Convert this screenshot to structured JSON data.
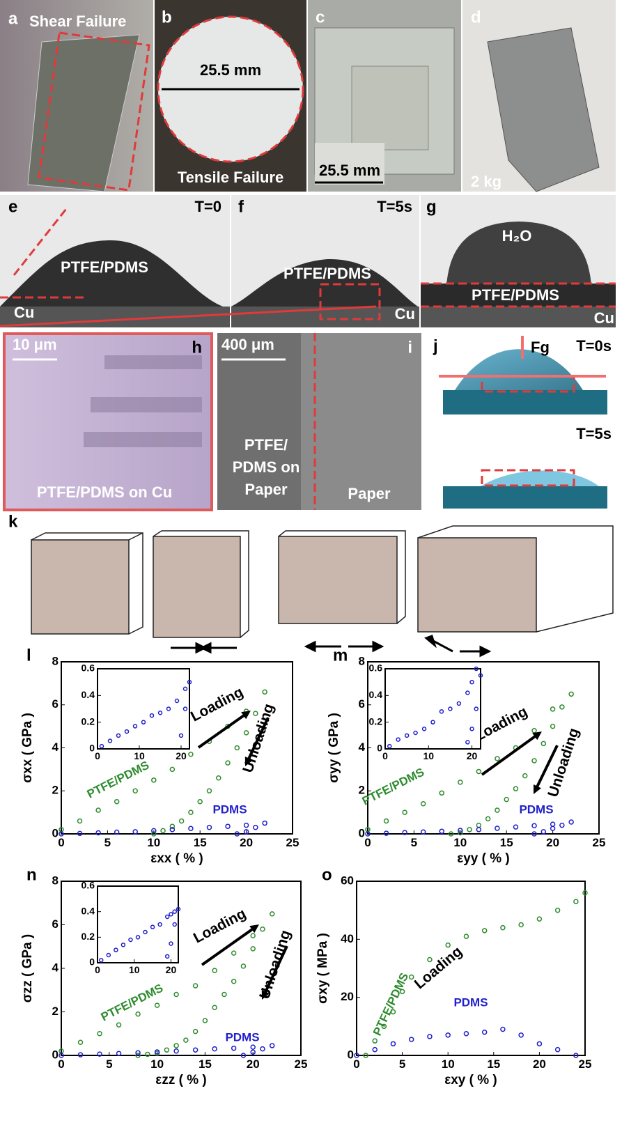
{
  "panels": {
    "a": {
      "label": "a",
      "text": "Shear Failure"
    },
    "b": {
      "label": "b",
      "dimension": "25.5 mm",
      "text": "Tensile Failure"
    },
    "c": {
      "label": "c",
      "scale": "25.5 mm"
    },
    "d": {
      "label": "d",
      "text": "2 kg"
    },
    "e": {
      "label": "e",
      "time": "T=0",
      "film": "PTFE/PDMS",
      "substrate": "Cu"
    },
    "f": {
      "label": "f",
      "time": "T=5s",
      "film": "PTFE/PDMS",
      "substrate": "Cu"
    },
    "g": {
      "label": "g",
      "drop": "H₂O",
      "film": "PTFE/PDMS",
      "substrate": "Cu"
    },
    "h": {
      "label": "h",
      "scale": "10 μm",
      "text": "PTFE/PDMS on Cu"
    },
    "i": {
      "label": "i",
      "scale": "400 μm",
      "text": [
        "PTFE/",
        "PDMS on",
        "Paper"
      ],
      "right": "Paper"
    },
    "j": {
      "label": "j",
      "force": "Fg",
      "time_top": "T=0s",
      "time_bottom": "T=5s"
    },
    "k": {
      "label": "k"
    }
  },
  "chart_data": [
    {
      "type": "scatter",
      "panel": "l",
      "x_label": "εxx ( % )",
      "y_label": "σxx ( GPa )",
      "xlim": [
        0,
        25
      ],
      "ylim": [
        0,
        8
      ],
      "xticks": [
        0,
        5,
        10,
        15,
        20,
        25
      ],
      "yticks": [
        0,
        2,
        4,
        6,
        8
      ],
      "annotations": [
        "Loading",
        "Unloading"
      ],
      "series": [
        {
          "name": "PTFE/PDMS",
          "color": "#2e8b2e",
          "x": [
            0,
            2,
            4,
            6,
            8,
            10,
            12,
            14,
            16,
            18,
            20,
            22,
            21,
            20,
            19,
            18,
            17,
            16,
            15,
            14,
            13,
            12,
            11,
            10
          ],
          "values": [
            0.2,
            0.6,
            1.1,
            1.5,
            2.0,
            2.5,
            3.0,
            3.7,
            4.3,
            5.0,
            5.7,
            6.6,
            5.6,
            4.7,
            4.0,
            3.3,
            2.6,
            2.0,
            1.5,
            1.0,
            0.6,
            0.35,
            0.15,
            0.0
          ]
        },
        {
          "name": "PDMS",
          "color": "#1f1fcc",
          "x": [
            0,
            2,
            4,
            6,
            8,
            10,
            12,
            14,
            16,
            18,
            20,
            22,
            21,
            20,
            19
          ],
          "values": [
            0,
            0.02,
            0.05,
            0.08,
            0.1,
            0.15,
            0.2,
            0.25,
            0.3,
            0.35,
            0.4,
            0.5,
            0.3,
            0.1,
            0.0
          ]
        }
      ],
      "inset": {
        "type": "scatter",
        "xlim": [
          0,
          22
        ],
        "ylim": [
          0,
          0.6
        ],
        "xticks": [
          0,
          10,
          20
        ],
        "yticks": [
          0,
          0.2,
          0.4,
          0.6
        ],
        "series": [
          {
            "color": "#1f1fcc",
            "x": [
              1,
              3,
              5,
              7,
              9,
              11,
              13,
              15,
              17,
              19,
              21,
              22,
              21,
              20
            ],
            "values": [
              0.02,
              0.06,
              0.1,
              0.13,
              0.17,
              0.2,
              0.25,
              0.27,
              0.3,
              0.36,
              0.45,
              0.5,
              0.3,
              0.1
            ]
          }
        ]
      }
    },
    {
      "type": "scatter",
      "panel": "m",
      "x_label": "εyy ( % )",
      "y_label": "σyy ( GPa )",
      "xlim": [
        0,
        25
      ],
      "ylim": [
        0,
        8
      ],
      "xticks": [
        0,
        5,
        10,
        15,
        20,
        25
      ],
      "yticks": [
        0,
        2,
        4,
        6,
        8
      ],
      "annotations": [
        "Loading",
        "Unloading"
      ],
      "series": [
        {
          "name": "PTFE/PDMS",
          "color": "#2e8b2e",
          "x": [
            0,
            2,
            4,
            6,
            8,
            10,
            12,
            14,
            16,
            18,
            20,
            22,
            21,
            20,
            19,
            18,
            17,
            16,
            15,
            14,
            13,
            12,
            11,
            10,
            9
          ],
          "values": [
            0.2,
            0.6,
            1.0,
            1.4,
            1.9,
            2.4,
            2.9,
            3.5,
            4.0,
            4.8,
            5.8,
            6.5,
            5.9,
            5.0,
            4.2,
            3.4,
            2.7,
            2.1,
            1.6,
            1.1,
            0.7,
            0.4,
            0.2,
            0.05,
            0.0
          ]
        },
        {
          "name": "PDMS",
          "color": "#1f1fcc",
          "x": [
            0,
            2,
            4,
            6,
            8,
            10,
            12,
            14,
            16,
            18,
            20,
            22,
            21,
            20,
            19,
            18
          ],
          "values": [
            0,
            0.03,
            0.06,
            0.09,
            0.12,
            0.16,
            0.2,
            0.26,
            0.32,
            0.38,
            0.45,
            0.55,
            0.4,
            0.25,
            0.1,
            0.0
          ]
        }
      ],
      "inset": {
        "type": "scatter",
        "xlim": [
          0,
          22
        ],
        "ylim": [
          0,
          0.6
        ],
        "xticks": [
          0,
          10,
          20
        ],
        "yticks": [
          0,
          0.2,
          0.4,
          0.6
        ],
        "series": [
          {
            "color": "#1f1fcc",
            "x": [
              1,
              3,
              5,
              7,
              9,
              11,
              13,
              15,
              17,
              19,
              20,
              21,
              22,
              21,
              20,
              19
            ],
            "values": [
              0.02,
              0.07,
              0.1,
              0.12,
              0.15,
              0.2,
              0.28,
              0.3,
              0.34,
              0.42,
              0.5,
              0.6,
              0.55,
              0.3,
              0.15,
              0.05
            ]
          }
        ]
      }
    },
    {
      "type": "scatter",
      "panel": "n",
      "x_label": "εzz ( % )",
      "y_label": "σzz ( GPa )",
      "xlim": [
        0,
        25
      ],
      "ylim": [
        0,
        8
      ],
      "xticks": [
        0,
        5,
        10,
        15,
        20,
        25
      ],
      "yticks": [
        0,
        2,
        4,
        6,
        8
      ],
      "annotations": [
        "Loading",
        "Unloading"
      ],
      "series": [
        {
          "name": "PTFE/PDMS",
          "color": "#2e8b2e",
          "x": [
            0,
            2,
            4,
            6,
            8,
            10,
            12,
            14,
            16,
            18,
            20,
            22,
            21,
            20,
            19,
            18,
            17,
            16,
            15,
            14,
            13,
            12,
            11,
            10,
            9,
            8
          ],
          "values": [
            0.2,
            0.6,
            1.0,
            1.4,
            1.9,
            2.3,
            2.8,
            3.2,
            3.9,
            4.7,
            5.5,
            6.5,
            5.8,
            4.9,
            4.1,
            3.4,
            2.8,
            2.2,
            1.6,
            1.1,
            0.7,
            0.45,
            0.25,
            0.1,
            0.05,
            0.0
          ]
        },
        {
          "name": "PDMS",
          "color": "#1f1fcc",
          "x": [
            0,
            2,
            4,
            6,
            8,
            10,
            12,
            14,
            16,
            18,
            20,
            22,
            21,
            20,
            19
          ],
          "values": [
            0,
            0.03,
            0.06,
            0.09,
            0.12,
            0.16,
            0.2,
            0.25,
            0.3,
            0.33,
            0.38,
            0.45,
            0.3,
            0.15,
            0.0
          ]
        }
      ],
      "inset": {
        "type": "scatter",
        "xlim": [
          0,
          22
        ],
        "ylim": [
          0,
          0.6
        ],
        "xticks": [
          0,
          10,
          20
        ],
        "yticks": [
          0,
          0.2,
          0.4,
          0.6
        ],
        "series": [
          {
            "color": "#1f1fcc",
            "x": [
              1,
              3,
              5,
              7,
              9,
              11,
              13,
              15,
              17,
              19,
              20,
              21,
              22,
              21,
              20,
              19
            ],
            "values": [
              0.02,
              0.06,
              0.1,
              0.14,
              0.18,
              0.2,
              0.24,
              0.28,
              0.3,
              0.36,
              0.38,
              0.4,
              0.42,
              0.3,
              0.15,
              0.05
            ]
          }
        ]
      }
    },
    {
      "type": "scatter",
      "panel": "o",
      "x_label": "εxy ( % )",
      "y_label": "σxy ( MPa )",
      "xlim": [
        0,
        25
      ],
      "ylim": [
        0,
        60
      ],
      "xticks": [
        0,
        5,
        10,
        15,
        20,
        25
      ],
      "yticks": [
        0,
        20,
        40,
        60
      ],
      "annotations": [
        "Loading"
      ],
      "series": [
        {
          "name": "PTFE/PDMS",
          "color": "#2e8b2e",
          "x": [
            1,
            2,
            3,
            4,
            5,
            6,
            8,
            10,
            12,
            14,
            16,
            18,
            20,
            22,
            24,
            25
          ],
          "values": [
            0,
            5,
            10,
            15,
            22,
            27,
            33,
            38,
            41,
            43,
            44,
            45,
            47,
            50,
            53,
            56
          ]
        },
        {
          "name": "PDMS",
          "color": "#1f1fcc",
          "x": [
            0,
            2,
            4,
            6,
            8,
            10,
            12,
            14,
            16,
            18,
            20,
            22,
            24
          ],
          "values": [
            0,
            2,
            4,
            5.5,
            6.5,
            7,
            7.5,
            8,
            9,
            7,
            4,
            2,
            0
          ]
        }
      ]
    }
  ]
}
